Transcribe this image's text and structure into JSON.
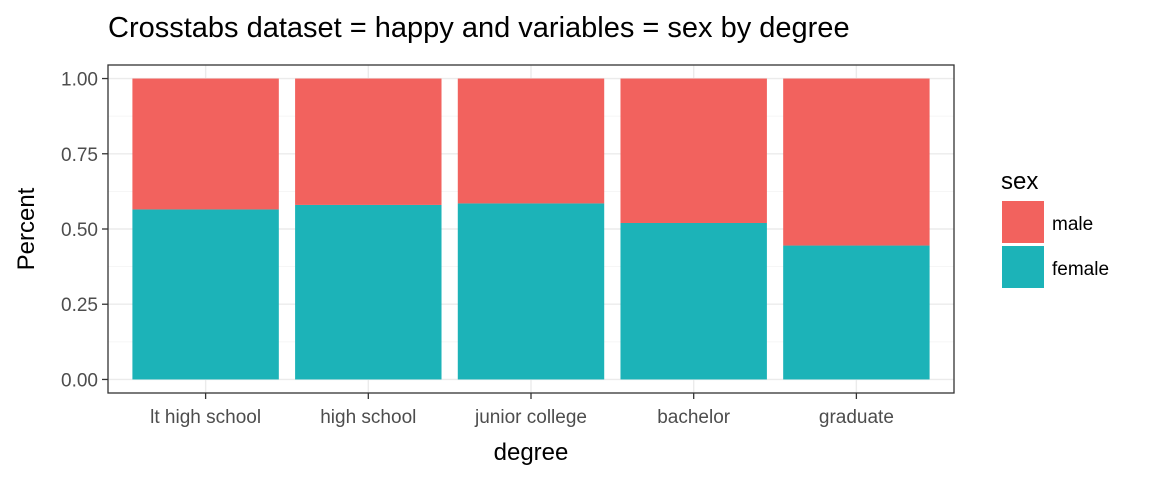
{
  "chart_data": {
    "type": "bar",
    "stacked": true,
    "title": "Crosstabs dataset = happy and variables = sex by degree",
    "xlabel": "degree",
    "ylabel": "Percent",
    "ylim": [
      0,
      1
    ],
    "yticks": [
      "0.00",
      "0.25",
      "0.50",
      "0.75",
      "1.00"
    ],
    "ytick_values": [
      0,
      0.25,
      0.5,
      0.75,
      1.0
    ],
    "categories": [
      "lt high school",
      "high school",
      "junior college",
      "bachelor",
      "graduate"
    ],
    "series": [
      {
        "name": "female",
        "color": "#1CB3B8",
        "values": [
          0.565,
          0.58,
          0.585,
          0.52,
          0.445
        ]
      },
      {
        "name": "male",
        "color": "#F2625E",
        "values": [
          0.435,
          0.42,
          0.415,
          0.48,
          0.555
        ]
      }
    ],
    "legend": {
      "title": "sex",
      "placement": "right",
      "entries": [
        {
          "label": "male",
          "color": "#F2625E"
        },
        {
          "label": "female",
          "color": "#1CB3B8"
        }
      ]
    },
    "grid": true,
    "theme": "bw"
  }
}
